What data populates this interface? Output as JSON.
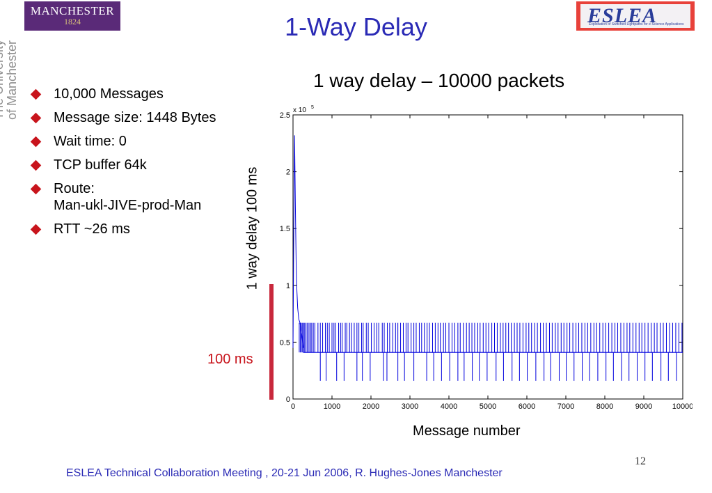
{
  "logos": {
    "left_line1": "MANCHESTER",
    "left_line2": "1824",
    "left_side_line1": "The University",
    "left_side_line2": "of Manchester",
    "right_text": "ESLEA",
    "right_subtext": "Exploitation of Switched Lightpaths for e-Science Applications"
  },
  "title": "1-Way Delay",
  "bullets": [
    {
      "text": "10,000 Messages"
    },
    {
      "text": "Message size: 1448 Bytes"
    },
    {
      "text": "Wait time: 0"
    },
    {
      "text": "TCP buffer 64k"
    },
    {
      "text": "Route:",
      "text2": "Man-ukl-JIVE-prod-Man"
    },
    {
      "text": "RTT ~26 ms"
    }
  ],
  "scale_label": "100 ms",
  "page_number": "12",
  "footer": "ESLEA Technical Collaboration Meeting , 20-21 Jun 2006,  R. Hughes-Jones  Manchester",
  "colors": {
    "title": "#2a2ab5",
    "bullet": "#c8141c",
    "series": "#0000dd",
    "scale_bar": "#c8283c"
  },
  "chart_data": {
    "type": "line",
    "title": "1 way delay – 10000 packets",
    "xlabel": "Message number",
    "ylabel": "1 way delay 100 ms",
    "y_multiplier_label": "x 10",
    "y_multiplier_exp": "5",
    "xlim": [
      0,
      10000
    ],
    "ylim": [
      0,
      2.5
    ],
    "xticks": [
      0,
      1000,
      2000,
      3000,
      4000,
      5000,
      6000,
      7000,
      8000,
      9000,
      10000
    ],
    "yticks": [
      0,
      0.5,
      1,
      1.5,
      2,
      2.5
    ],
    "grid": false,
    "series": [
      {
        "baseline": 0.41,
        "low_level": 0.16,
        "high_level": 0.67,
        "initial": {
          "x": [
            0,
            20,
            40,
            60,
            80,
            100,
            120,
            150,
            180,
            200,
            230,
            260
          ],
          "y": [
            0.45,
            1.5,
            2.32,
            1.7,
            1.2,
            0.95,
            0.8,
            0.7,
            0.67,
            0.62,
            0.55,
            0.45
          ]
        },
        "high_spikes_x": [
          160,
          190,
          215,
          245,
          275,
          300,
          335,
          370,
          410,
          450,
          480,
          520,
          560,
          640,
          700,
          760,
          830,
          880,
          930,
          1000,
          1050,
          1090,
          1170,
          1220,
          1260,
          1340,
          1380,
          1450,
          1500,
          1570,
          1640,
          1690,
          1760,
          1800,
          1880,
          1930,
          2010,
          2080,
          2150,
          2200,
          2290,
          2340,
          2420,
          2480,
          2560,
          2630,
          2690,
          2760,
          2830,
          2900,
          2950,
          3030,
          3100,
          3160,
          3240,
          3300,
          3370,
          3440,
          3500,
          3580,
          3650,
          3720,
          3780,
          3860,
          3920,
          4000,
          4080,
          4150,
          4230,
          4290,
          4370,
          4450,
          4520,
          4590,
          4660,
          4740,
          4800,
          4880,
          4950,
          5020,
          5100,
          5170,
          5240,
          5320,
          5390,
          5460,
          5530,
          5600,
          5680,
          5750,
          5820,
          5900,
          5980,
          6050,
          6120,
          6200,
          6270,
          6350,
          6420,
          6500,
          6580,
          6650,
          6730,
          6800,
          6880,
          6950,
          7030,
          7100,
          7180,
          7260,
          7330,
          7410,
          7490,
          7560,
          7640,
          7720,
          7790,
          7870,
          7950,
          8020,
          8100,
          8180,
          8260,
          8330,
          8410,
          8490,
          8570,
          8640,
          8720,
          8800,
          8880,
          8950,
          9030,
          9110,
          9190,
          9270,
          9340,
          9420,
          9500,
          9580,
          9660,
          9740,
          9820,
          9900,
          9980
        ],
        "low_spikes_x": [
          700,
          850,
          1120,
          1310,
          1640,
          1780,
          1980,
          2320,
          2410,
          2690,
          2860,
          3100,
          3430,
          3610,
          3810,
          4020,
          4230,
          4390,
          4600,
          4780,
          4980,
          5210,
          5400,
          5620,
          5810,
          6010,
          6230,
          6440,
          6610,
          6830,
          7010,
          7210,
          7420,
          7610,
          7820,
          8030,
          8220,
          8430,
          8620,
          8830,
          9030,
          9220,
          9440,
          9630,
          9840
        ]
      }
    ]
  }
}
